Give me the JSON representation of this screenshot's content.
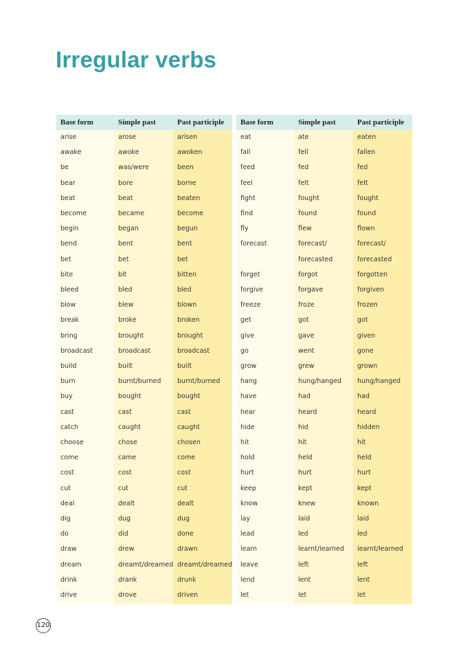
{
  "title": "Irregular verbs",
  "page_number": "120",
  "tables": [
    {
      "header": [
        "Base form",
        "Simple past",
        "Past participle"
      ],
      "rows": [
        [
          "arise",
          "arose",
          "arisen"
        ],
        [
          "awake",
          "awoke",
          "awoken"
        ],
        [
          "be",
          "was/were",
          "been"
        ],
        [
          "bear",
          "bore",
          "borne"
        ],
        [
          "beat",
          "beat",
          "beaten"
        ],
        [
          "become",
          "became",
          "become"
        ],
        [
          "begin",
          "began",
          "begun"
        ],
        [
          "bend",
          "bent",
          "bent"
        ],
        [
          "bet",
          "bet",
          "bet"
        ],
        [
          "bite",
          "bit",
          "bitten"
        ],
        [
          "bleed",
          "bled",
          "bled"
        ],
        [
          "blow",
          "blew",
          "blown"
        ],
        [
          "break",
          "broke",
          "broken"
        ],
        [
          "bring",
          "brought",
          "brought"
        ],
        [
          "broadcast",
          "broadcast",
          "broadcast"
        ],
        [
          "build",
          "built",
          "built"
        ],
        [
          "burn",
          "burnt/burned",
          "burnt/burned"
        ],
        [
          "buy",
          "bought",
          "bought"
        ],
        [
          "cast",
          "cast",
          "cast"
        ],
        [
          "catch",
          "caught",
          "caught"
        ],
        [
          "choose",
          "chose",
          "chosen"
        ],
        [
          "come",
          "came",
          "come"
        ],
        [
          "cost",
          "cost",
          "cost"
        ],
        [
          "cut",
          "cut",
          "cut"
        ],
        [
          "deal",
          "dealt",
          "dealt"
        ],
        [
          "dig",
          "dug",
          "dug"
        ],
        [
          "do",
          "did",
          "done"
        ],
        [
          "draw",
          "drew",
          "drawn"
        ],
        [
          "dream",
          "dreamt/dreamed",
          "dreamt/dreamed"
        ],
        [
          "drink",
          "drank",
          "drunk"
        ],
        [
          "drive",
          "drove",
          "driven"
        ]
      ]
    },
    {
      "header": [
        "Base form",
        "Simple past",
        "Past participle"
      ],
      "rows": [
        [
          "eat",
          "ate",
          "eaten"
        ],
        [
          "fall",
          "fell",
          "fallen"
        ],
        [
          "feed",
          "fed",
          "fed"
        ],
        [
          "feel",
          "felt",
          "felt"
        ],
        [
          "fight",
          "fought",
          "fought"
        ],
        [
          "find",
          "found",
          "found"
        ],
        [
          "fly",
          "flew",
          "flown"
        ],
        [
          "forecast",
          [
            "forecast/",
            "forecasted"
          ],
          [
            "forecast/",
            "forecasted"
          ]
        ],
        [
          "forget",
          "forgot",
          "forgotten"
        ],
        [
          "forgive",
          "forgave",
          "forgiven"
        ],
        [
          "freeze",
          "froze",
          "frozen"
        ],
        [
          "get",
          "got",
          "got"
        ],
        [
          "give",
          "gave",
          "given"
        ],
        [
          "go",
          "went",
          "gone"
        ],
        [
          "grow",
          "grew",
          "grown"
        ],
        [
          "hang",
          "hung/hanged",
          "hung/hanged"
        ],
        [
          "have",
          "had",
          "had"
        ],
        [
          "hear",
          "heard",
          "heard"
        ],
        [
          "hide",
          "hid",
          "hidden"
        ],
        [
          "hit",
          "hit",
          "hit"
        ],
        [
          "hold",
          "held",
          "held"
        ],
        [
          "hurt",
          "hurt",
          "hurt"
        ],
        [
          "keep",
          "kept",
          "kept"
        ],
        [
          "know",
          "knew",
          "known"
        ],
        [
          "lay",
          "laid",
          "laid"
        ],
        [
          "lead",
          "led",
          "led"
        ],
        [
          "learn",
          "learnt/learned",
          "learnt/learned"
        ],
        [
          "leave",
          "left",
          "left"
        ],
        [
          "lend",
          "lent",
          "lent"
        ],
        [
          "let",
          "let",
          "let"
        ]
      ]
    }
  ]
}
